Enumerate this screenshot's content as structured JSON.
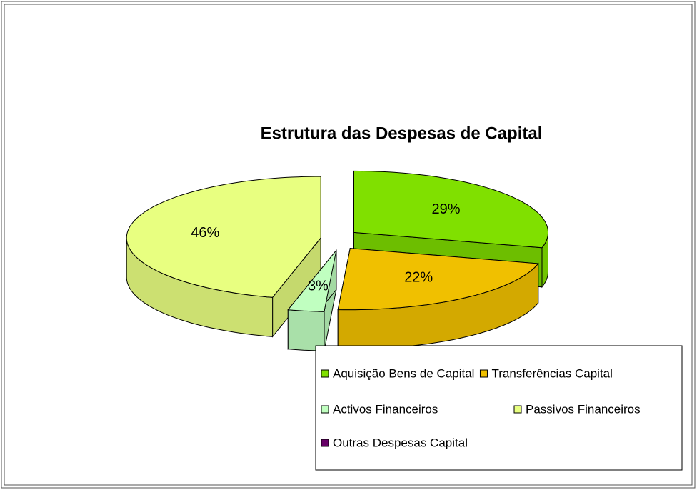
{
  "chart_data": {
    "type": "pie",
    "title": "Estrutura das Despesas de Capital",
    "categories": [
      "Aquisição Bens de Capital",
      "Transferências Capital",
      "Activos Financeiros",
      "Passivos Financeiros",
      "Outras Despesas Capital"
    ],
    "values": [
      29,
      22,
      3,
      46,
      0
    ],
    "value_labels": [
      "29%",
      "22%",
      "3%",
      "46%",
      null
    ],
    "colors": [
      "#80e000",
      "#f0c000",
      "#c0ffc0",
      "#e8ff80",
      "#660066"
    ],
    "legend": "bottom-right"
  }
}
